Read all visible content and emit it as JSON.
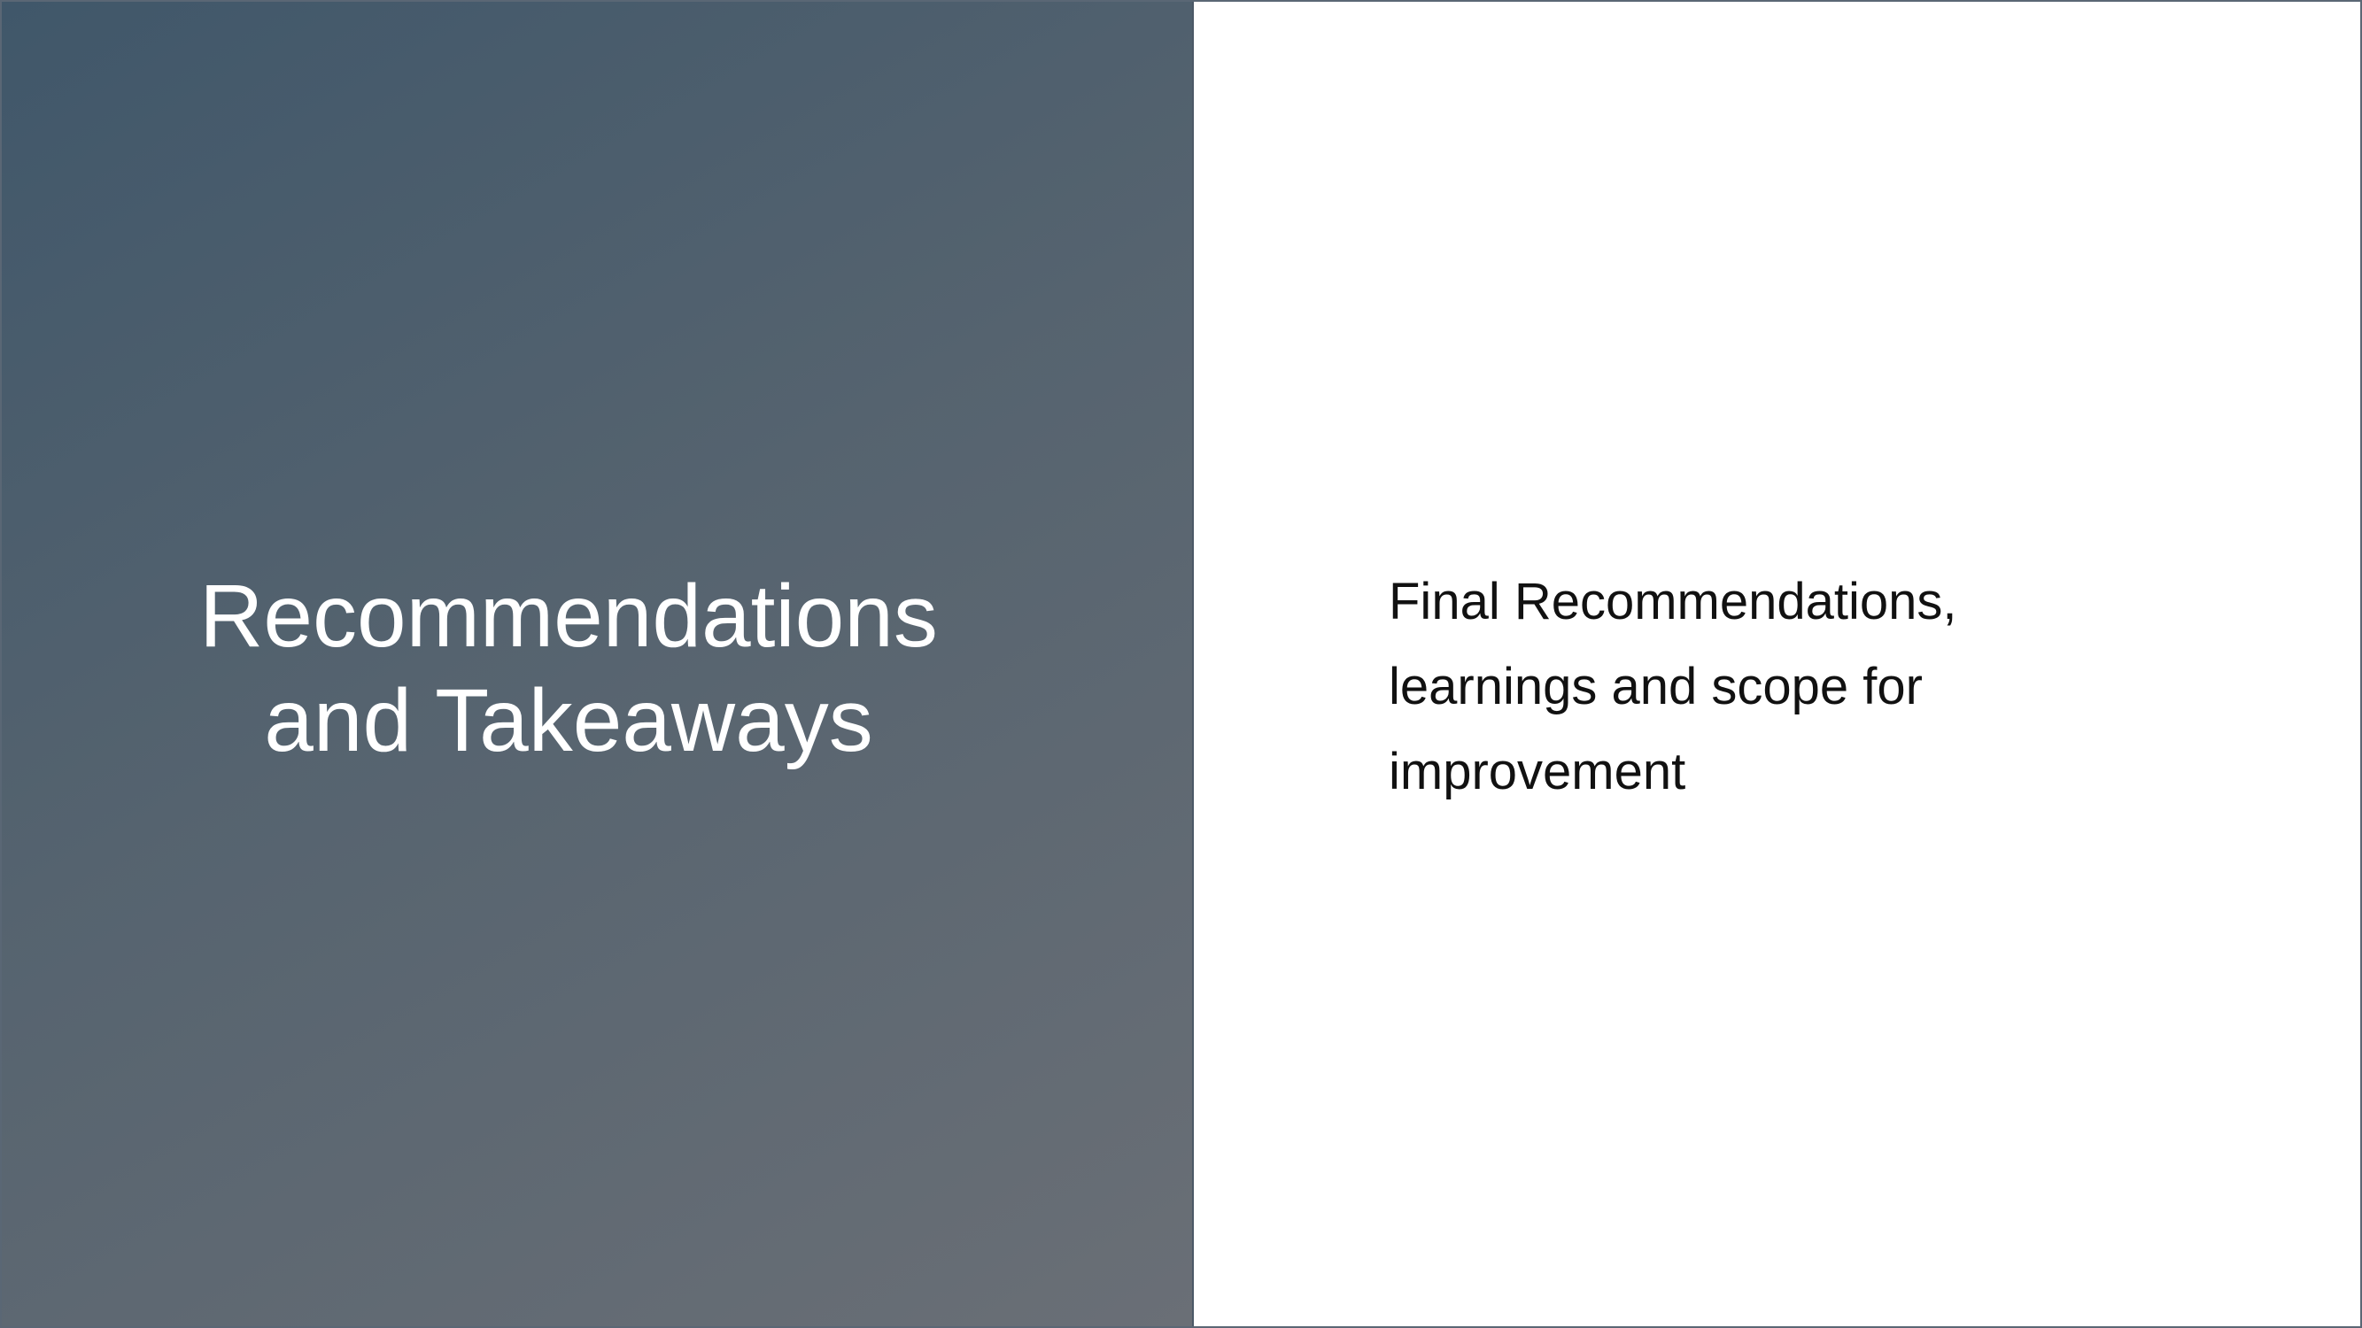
{
  "slide": {
    "title": "Recommendations and Takeaways",
    "body": "Final Recommendations, learnings and scope for improvement"
  },
  "colors": {
    "panel_gradient_start": "#40576a",
    "panel_gradient_end": "#6a6f76",
    "title_text": "#ffffff",
    "body_text": "#111111",
    "background": "#ffffff"
  }
}
